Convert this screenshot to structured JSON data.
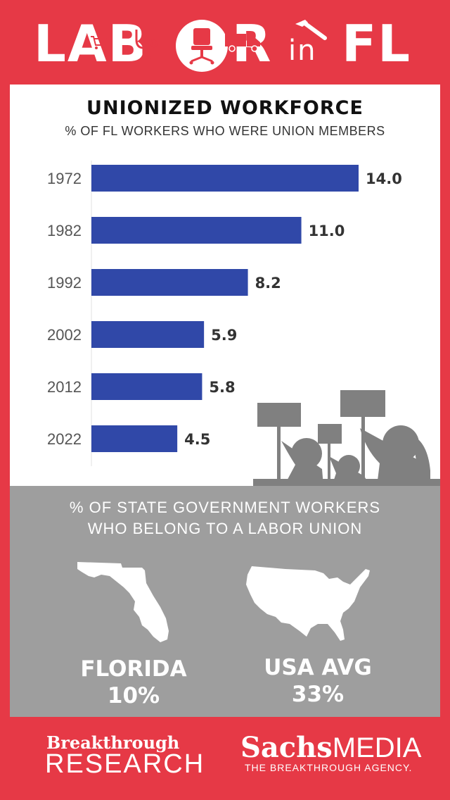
{
  "header": {
    "labor_word": "LAB",
    "labor_word_end": "R",
    "in_word": "in",
    "fl_word": "FL"
  },
  "colors": {
    "frame": "#e63946",
    "bar": "#3048a8",
    "grey_panel": "#9e9e9e",
    "silhouette": "#808080"
  },
  "icons": [
    "cart-icon",
    "stethoscope-icon",
    "office-chair-icon",
    "truck-icon",
    "hammer-icon",
    "protest-silhouette-icon",
    "florida-map-icon",
    "usa-map-icon"
  ],
  "chart": {
    "title": "UNIONIZED WORKFORCE",
    "subtitle": "% OF FL WORKERS WHO WERE UNION MEMBERS"
  },
  "chart_data": {
    "type": "bar",
    "orientation": "horizontal",
    "categories": [
      "1972",
      "1982",
      "1992",
      "2002",
      "2012",
      "2022"
    ],
    "values": [
      14.0,
      11.0,
      8.2,
      5.9,
      5.8,
      4.5
    ],
    "value_labels": [
      "14.0",
      "11.0",
      "8.2",
      "5.9",
      "5.8",
      "4.5"
    ],
    "title": "UNIONIZED WORKFORCE",
    "subtitle": "% OF FL WORKERS WHO WERE UNION MEMBERS",
    "xlabel": "",
    "ylabel": "",
    "xlim": [
      0,
      14
    ],
    "grid": false
  },
  "state_gov": {
    "title_line1": "% OF STATE GOVERNMENT WORKERS",
    "title_line2": "WHO BELONG TO A LABOR UNION",
    "florida_label": "FLORIDA",
    "florida_value": "10%",
    "usa_label": "USA AVG",
    "usa_value": "33%"
  },
  "footer": {
    "left_line1": "Breakthrough",
    "left_line2": "RESEARCH",
    "right_bold": "Sachs",
    "right_rest": "MEDIA",
    "right_tagline": "THE BREAKTHROUGH AGENCY."
  }
}
